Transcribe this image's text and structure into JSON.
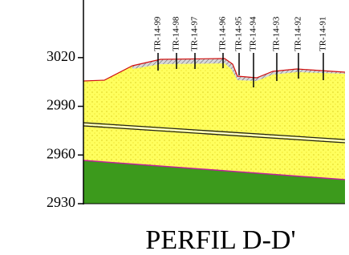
{
  "chart_data": {
    "type": "profile",
    "title": "PERFIL D-D'",
    "ylim": [
      2930,
      3056
    ],
    "yticks": [
      2930,
      2960,
      2990,
      3020
    ],
    "boreholes": [
      "TR-14-99",
      "TR-14-98",
      "TR-14-97",
      "TR-14-96",
      "TR-14-95",
      "TR-14-94",
      "TR-14-93",
      "TR-14-92",
      "TR-14-91"
    ]
  }
}
